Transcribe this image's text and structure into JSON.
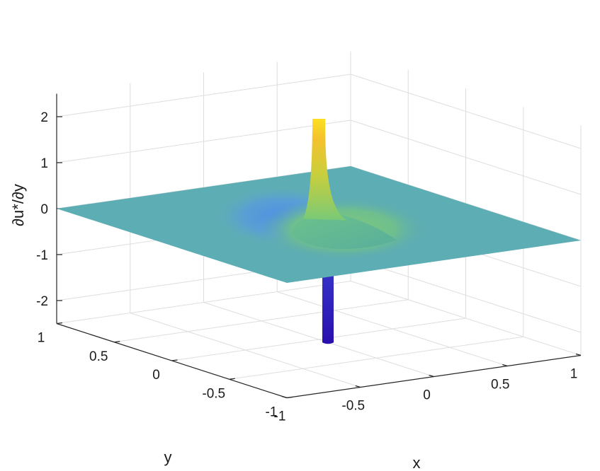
{
  "chart_data": {
    "type": "surface",
    "title": "",
    "xlabel": "x",
    "ylabel": "y",
    "zlabel": "∂u*/∂y",
    "xlim": [
      -1,
      1
    ],
    "ylim": [
      -1,
      1
    ],
    "zlim": [
      -2.5,
      2.5
    ],
    "x_ticks": [
      -1,
      -0.5,
      0,
      0.5,
      1
    ],
    "y_ticks": [
      -1,
      -0.5,
      0,
      0.5,
      1
    ],
    "z_ticks": [
      -2,
      -1,
      0,
      1,
      2
    ],
    "x_tick_labels": [
      "-1",
      "-0.5",
      "0",
      "0.5",
      "1"
    ],
    "y_tick_labels": [
      "-1",
      "-0.5",
      "0",
      "0.5",
      "1"
    ],
    "z_tick_labels": [
      "-2",
      "-1",
      "0",
      "1",
      "2"
    ],
    "grid": true,
    "colormap": "parula",
    "colors": {
      "low": "#3b14c8",
      "mid_low": "#3f8ee0",
      "mid": "#57a9b8",
      "mid_high": "#8fd061",
      "high": "#f5d224",
      "top": "#fbe020"
    },
    "features": {
      "peak": {
        "x": 0.0,
        "y": 0.0,
        "z": 2.3
      },
      "trough": {
        "x": 0.0,
        "y": -0.08,
        "z": -2.5
      },
      "baseline_z": 0.0
    }
  }
}
